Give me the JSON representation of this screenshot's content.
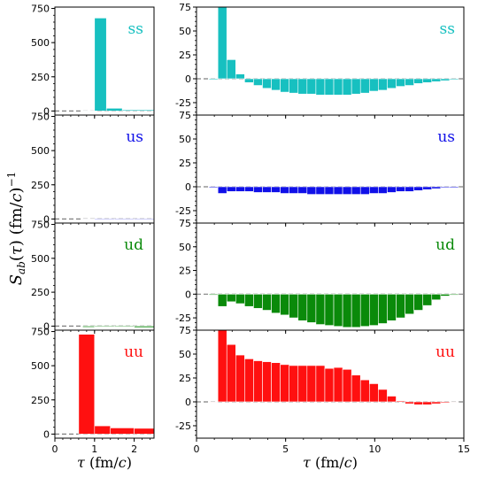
{
  "ylabel": "S_ab(τ) (fm/c)^-1",
  "colors": {
    "ss": "#17c0c0",
    "us": "#1010e8",
    "ud": "#0a8a0a",
    "uu": "#ff1010",
    "zero_line": "#808080"
  },
  "chart_data": [
    {
      "type": "bar",
      "panel": "ss",
      "column": "left",
      "annotation": "ss",
      "color_key": "ss",
      "xlim": [
        0,
        2.5
      ],
      "ylim": [
        -30,
        760
      ],
      "xticks": [
        0,
        1,
        2
      ],
      "yticks": [
        0,
        250,
        500,
        750
      ],
      "xlabel": "",
      "bins": [
        [
          0.7,
          1.0,
          2
        ],
        [
          1.0,
          1.3,
          680
        ],
        [
          1.3,
          1.7,
          20
        ],
        [
          1.7,
          2.5,
          8
        ]
      ]
    },
    {
      "type": "bar",
      "panel": "us",
      "column": "left",
      "annotation": "us",
      "color_key": "us",
      "xlim": [
        0,
        2.5
      ],
      "ylim": [
        -30,
        760
      ],
      "xticks": [
        0,
        1,
        2
      ],
      "yticks": [
        0,
        250,
        500,
        750
      ],
      "xlabel": "",
      "bins": [
        [
          0.7,
          1.0,
          -3
        ],
        [
          1.0,
          1.5,
          -5
        ],
        [
          1.5,
          2.0,
          -5
        ],
        [
          2.0,
          2.5,
          -5
        ]
      ]
    },
    {
      "type": "bar",
      "panel": "ud",
      "column": "left",
      "annotation": "ud",
      "color_key": "ud",
      "xlim": [
        0,
        2.5
      ],
      "ylim": [
        -30,
        760
      ],
      "xticks": [
        0,
        1,
        2
      ],
      "yticks": [
        0,
        250,
        500,
        750
      ],
      "xlabel": "",
      "bins": [
        [
          0.7,
          1.0,
          -8
        ],
        [
          1.0,
          1.5,
          -6
        ],
        [
          1.5,
          2.0,
          -6
        ],
        [
          2.0,
          2.5,
          -10
        ]
      ]
    },
    {
      "type": "bar",
      "panel": "uu",
      "column": "left",
      "annotation": "uu",
      "color_key": "uu",
      "xlim": [
        0,
        2.5
      ],
      "ylim": [
        -30,
        760
      ],
      "xticks": [
        0,
        1,
        2
      ],
      "yticks": [
        0,
        250,
        500,
        750
      ],
      "xlabel": "τ (fm/c)",
      "bins": [
        [
          0.6,
          1.0,
          730
        ],
        [
          1.0,
          1.4,
          60
        ],
        [
          1.4,
          2.0,
          45
        ],
        [
          2.0,
          2.5,
          42
        ]
      ]
    },
    {
      "type": "bar",
      "panel": "ss",
      "column": "right",
      "annotation": "ss",
      "color_key": "ss",
      "xlim": [
        0,
        15
      ],
      "ylim": [
        -38,
        75
      ],
      "xticks": [
        0,
        5,
        10,
        15
      ],
      "yticks": [
        -25,
        0,
        25,
        50,
        75
      ],
      "xlabel": "",
      "bin_start": 0.7,
      "bin_width": 0.5,
      "values": [
        -1,
        90,
        20,
        5,
        -4,
        -7,
        -10,
        -12,
        -14,
        -15,
        -16,
        -16,
        -17,
        -17,
        -17,
        -17,
        -16,
        -15,
        -13,
        -12,
        -10,
        -8,
        -7,
        -5,
        -4,
        -3,
        -2,
        -1
      ]
    },
    {
      "type": "bar",
      "panel": "us",
      "column": "right",
      "annotation": "us",
      "color_key": "us",
      "xlim": [
        0,
        15
      ],
      "ylim": [
        -38,
        75
      ],
      "xticks": [
        0,
        5,
        10,
        15
      ],
      "yticks": [
        -25,
        0,
        25,
        50,
        75
      ],
      "xlabel": "",
      "bin_start": 0.7,
      "bin_width": 0.5,
      "values": [
        -1,
        -7,
        -5,
        -5,
        -5,
        -6,
        -6,
        -6,
        -7,
        -7,
        -7,
        -8,
        -8,
        -8,
        -8,
        -8,
        -8,
        -8,
        -7,
        -7,
        -6,
        -5,
        -5,
        -4,
        -3,
        -2,
        -1,
        -1
      ]
    },
    {
      "type": "bar",
      "panel": "ud",
      "column": "right",
      "annotation": "ud",
      "color_key": "ud",
      "xlim": [
        0,
        15
      ],
      "ylim": [
        -38,
        75
      ],
      "xticks": [
        0,
        5,
        10,
        15
      ],
      "yticks": [
        -25,
        0,
        25,
        50,
        75
      ],
      "xlabel": "",
      "bin_start": 0.7,
      "bin_width": 0.5,
      "values": [
        -1,
        -13,
        -8,
        -10,
        -13,
        -15,
        -17,
        -20,
        -22,
        -25,
        -28,
        -30,
        -32,
        -33,
        -34,
        -35,
        -35,
        -34,
        -33,
        -31,
        -28,
        -25,
        -21,
        -17,
        -12,
        -6,
        -2,
        -1
      ]
    },
    {
      "type": "bar",
      "panel": "uu",
      "column": "right",
      "annotation": "uu",
      "color_key": "uu",
      "xlim": [
        0,
        15
      ],
      "ylim": [
        -38,
        75
      ],
      "xticks": [
        0,
        5,
        10,
        15
      ],
      "yticks": [
        -25,
        0,
        25,
        50,
        75
      ],
      "xlabel": "τ (fm/c)",
      "bin_start": 0.7,
      "bin_width": 0.5,
      "values": [
        0,
        90,
        60,
        49,
        45,
        43,
        42,
        41,
        39,
        38,
        38,
        38,
        38,
        35,
        36,
        34,
        28,
        23,
        19,
        13,
        6,
        1,
        -2,
        -3,
        -3,
        -2,
        -1,
        0
      ]
    }
  ]
}
